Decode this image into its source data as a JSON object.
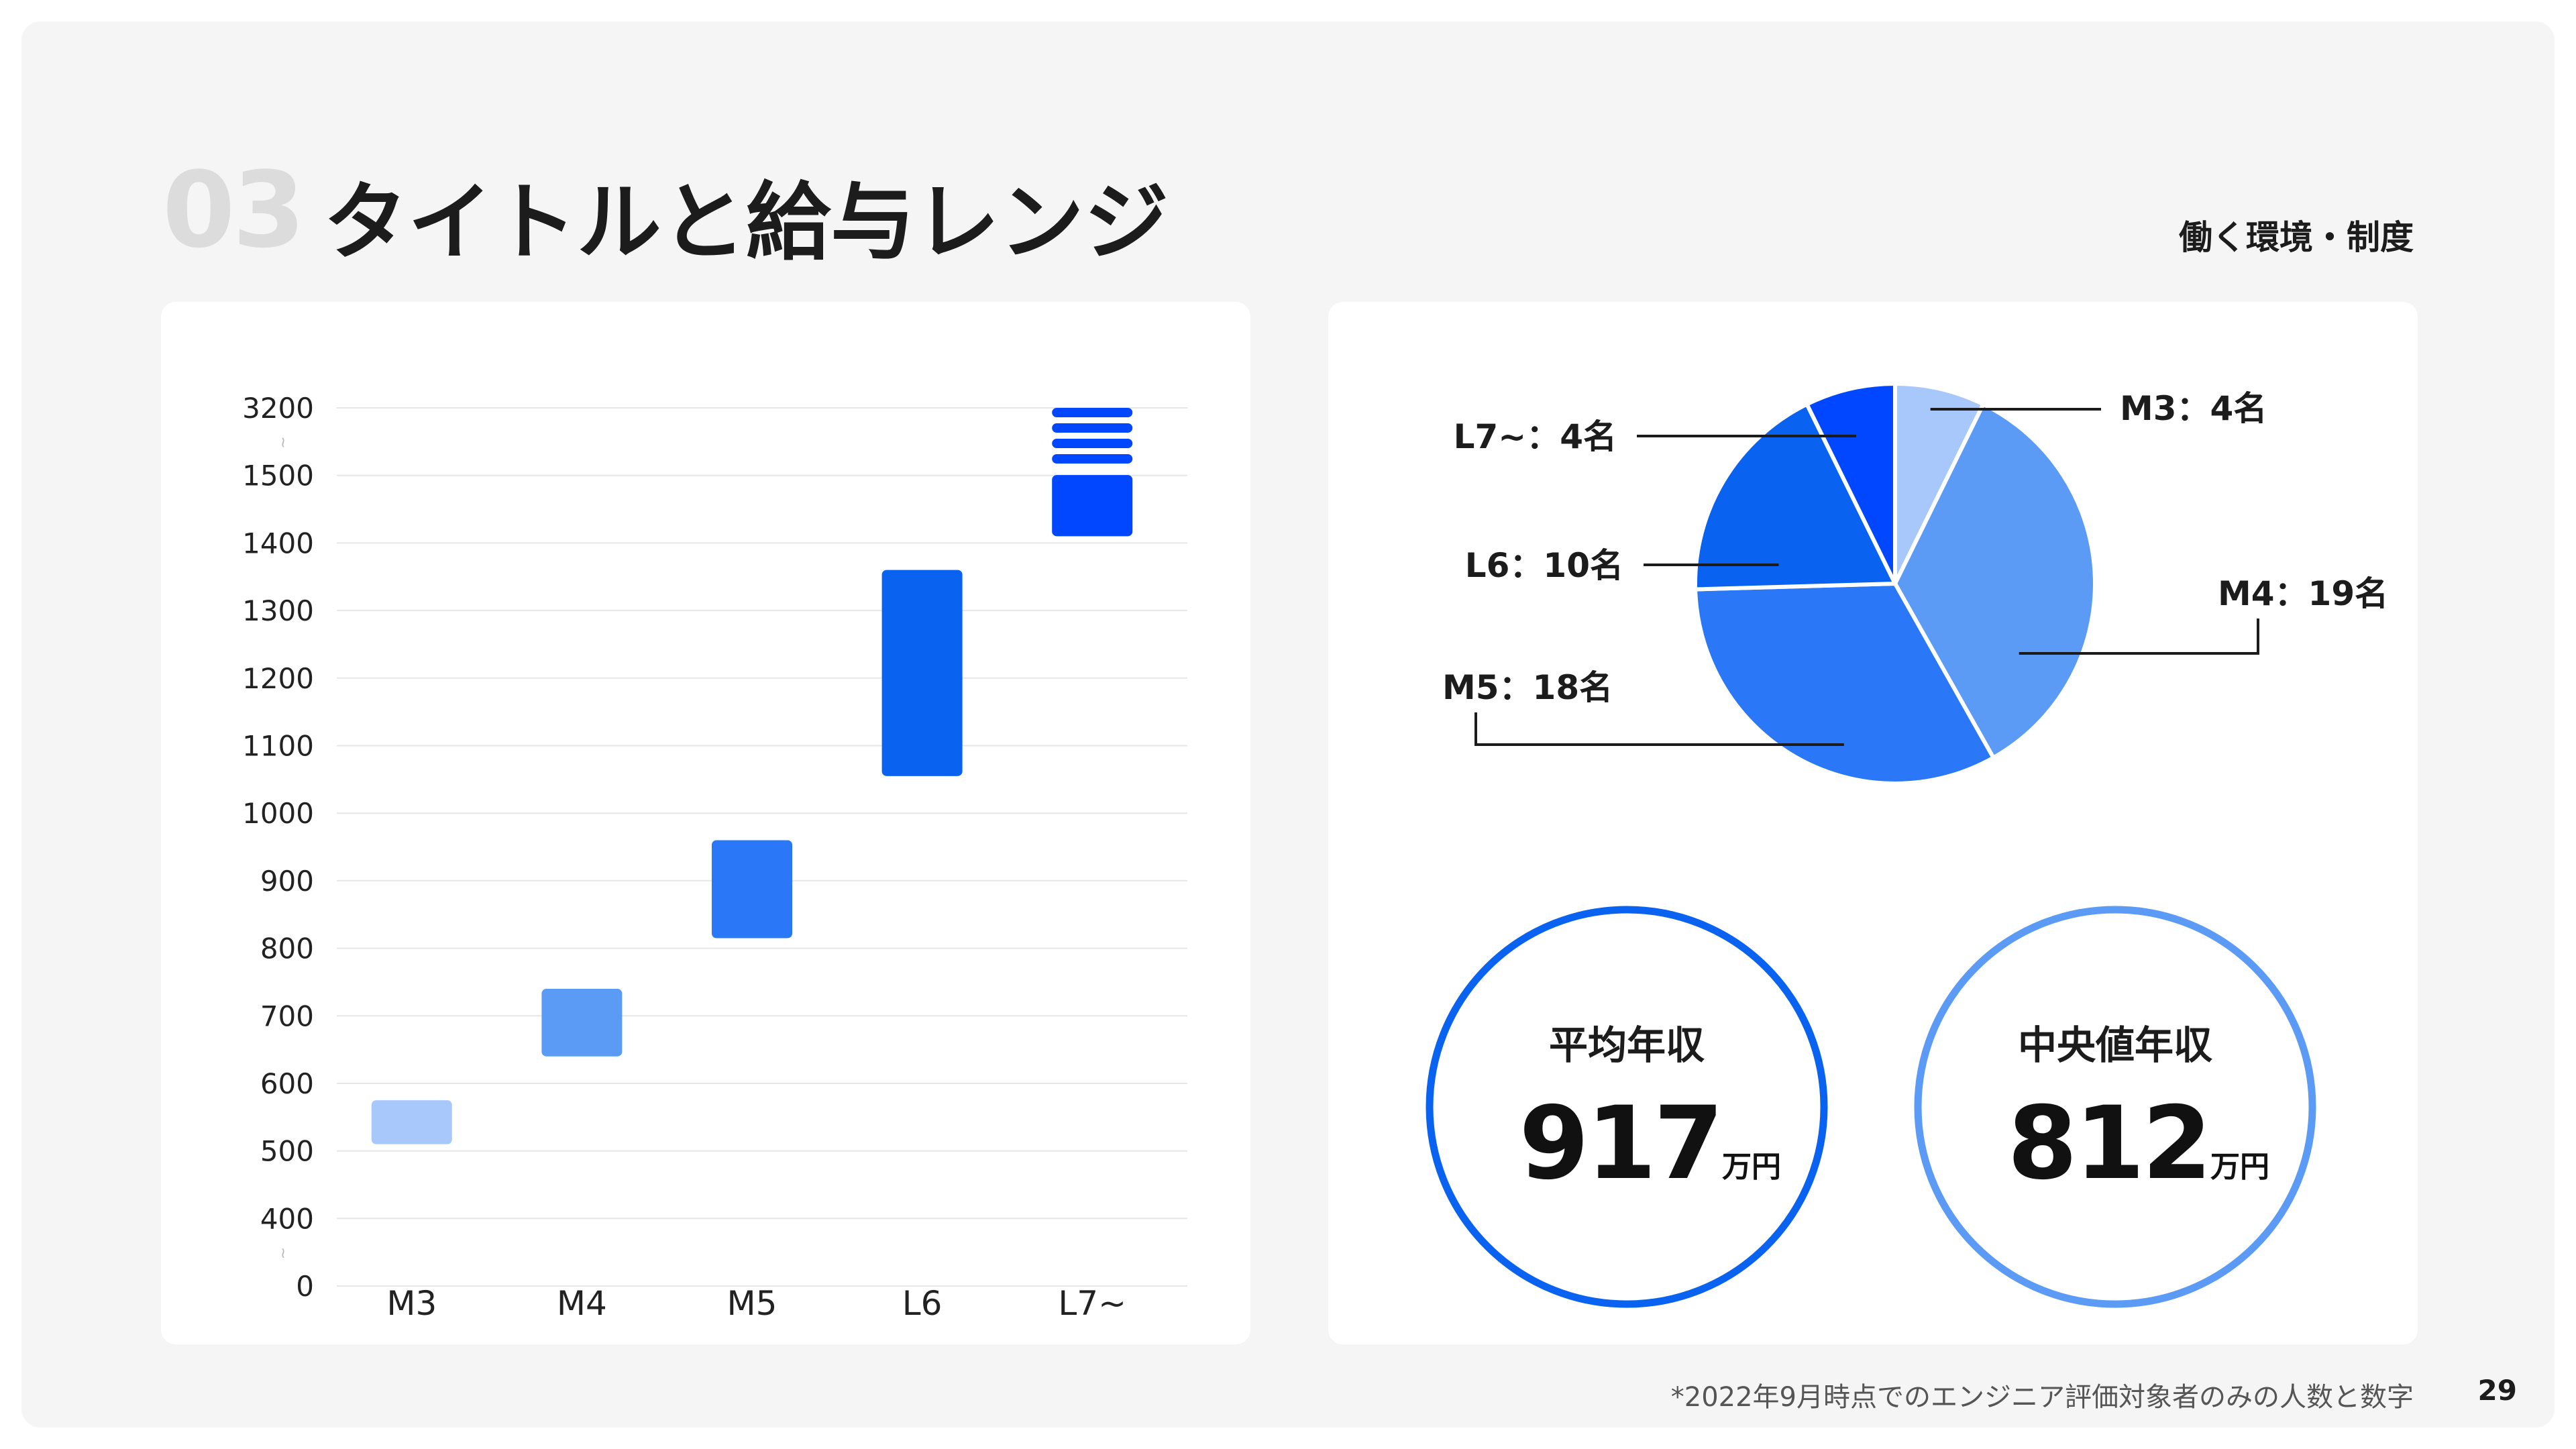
{
  "header": {
    "section_number": "03",
    "title": "タイトルと給与レンジ",
    "category": "働く環境・制度"
  },
  "chart_data": [
    {
      "type": "bar",
      "subtype": "floating-range",
      "categories": [
        "M3",
        "M4",
        "M5",
        "L6",
        "L7~"
      ],
      "yticks": [
        "0",
        "400",
        "500",
        "600",
        "700",
        "800",
        "900",
        "1000",
        "1100",
        "1200",
        "1300",
        "1400",
        "1500",
        "3200"
      ],
      "axis_breaks": [
        "0-400",
        "1500-3200"
      ],
      "ranges": [
        {
          "category": "M3",
          "low": 510,
          "high": 575,
          "color": "#a8c8fb"
        },
        {
          "category": "M4",
          "low": 640,
          "high": 740,
          "color": "#5b9bf6"
        },
        {
          "category": "M5",
          "low": 815,
          "high": 960,
          "color": "#2a78f8"
        },
        {
          "category": "L6",
          "low": 1055,
          "high": 1360,
          "color": "#0a63f0"
        },
        {
          "category": "L7~",
          "low": 1410,
          "high": 3200,
          "color": "#0047ff",
          "note": "range extends through axis break"
        }
      ],
      "grid": true,
      "legend": "none"
    },
    {
      "type": "pie",
      "slices": [
        {
          "label": "M3：4名",
          "value": 4,
          "color": "#a8c8fb"
        },
        {
          "label": "M4：19名",
          "value": 19,
          "color": "#5b9bf6"
        },
        {
          "label": "M5：18名",
          "value": 18,
          "color": "#2a78f8"
        },
        {
          "label": "L6：10名",
          "value": 10,
          "color": "#0a63f0"
        },
        {
          "label": "L7~：4名",
          "value": 4,
          "color": "#0047ff"
        }
      ]
    }
  ],
  "stats": [
    {
      "label": "平均年収",
      "value": "917",
      "unit": "万円",
      "color": "#0a63f0"
    },
    {
      "label": "中央値年収",
      "value": "812",
      "unit": "万円",
      "color": "#5b9bf6"
    }
  ],
  "footer": {
    "note": "*2022年9月時点でのエンジニア評価対象者のみの人数と数字",
    "page_number": "29"
  }
}
